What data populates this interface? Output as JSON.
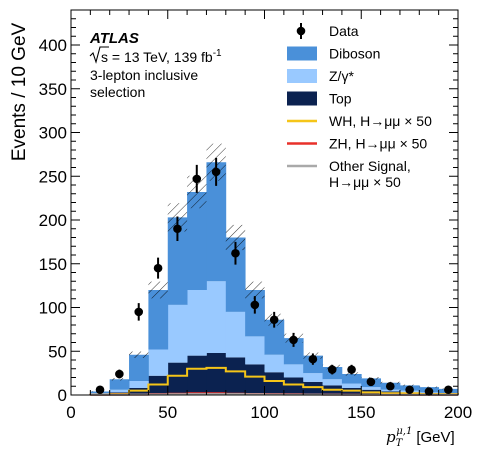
{
  "chart_data": {
    "type": "bar",
    "stacked": true,
    "title": "",
    "experiment": "ATLAS",
    "energy_text": "s = 13 TeV, 139 fb",
    "energy_exp": "-1",
    "selection": [
      "3-lepton inclusive",
      "selection"
    ],
    "xlabel_base": "p",
    "xlabel_sub": "T",
    "xlabel_sup": "μ,1",
    "xlabel_unit": "[GeV]",
    "ylabel": "Events / 10 GeV",
    "xlim": [
      0,
      200
    ],
    "ylim": [
      0,
      440
    ],
    "xticks": [
      0,
      50,
      100,
      150,
      200
    ],
    "yticks": [
      0,
      50,
      100,
      150,
      200,
      250,
      300,
      350,
      400
    ],
    "bin_edges": [
      10,
      20,
      30,
      40,
      50,
      60,
      70,
      80,
      90,
      100,
      110,
      120,
      130,
      140,
      150,
      160,
      170,
      180,
      190,
      200
    ],
    "series": [
      {
        "name": "Top",
        "color": "#0b2250",
        "values": [
          1,
          3,
          8,
          22,
          37,
          45,
          48,
          43,
          35,
          26,
          20,
          15,
          11,
          8,
          6,
          4,
          3,
          2,
          1
        ]
      },
      {
        "name": "Z/γ*",
        "color": "#99c9ff",
        "values": [
          1,
          3,
          8,
          30,
          66,
          75,
          82,
          52,
          32,
          20,
          15,
          10,
          7,
          5,
          3,
          2,
          2,
          1,
          1
        ]
      },
      {
        "name": "Diboson",
        "color": "#4a90d9",
        "values": [
          2,
          12,
          30,
          68,
          100,
          112,
          136,
          85,
          53,
          40,
          30,
          20,
          14,
          11,
          10,
          8,
          6,
          6,
          5
        ]
      }
    ],
    "uncertainty_fraction": 0.08,
    "signal_lines": [
      {
        "name": "WH, H→μμ × 50",
        "color": "#f5c518",
        "values": [
          0.3,
          1,
          5,
          12,
          22,
          30,
          31,
          27,
          21,
          16,
          12,
          9,
          6,
          5,
          3,
          2,
          2,
          1,
          1
        ]
      },
      {
        "name": "ZH, H→μμ × 50",
        "color": "#e8302a",
        "values": [
          0.1,
          0.3,
          0.5,
          1,
          1.5,
          2,
          2,
          1.5,
          1.2,
          1,
          0.8,
          0.6,
          0.4,
          0.3,
          0.2,
          0.2,
          0.1,
          0.1,
          0.1
        ]
      },
      {
        "name": "Other Signal, H→μμ × 50",
        "color": "#a9a9a9",
        "values": [
          0.1,
          0.2,
          0.4,
          0.6,
          0.8,
          1,
          1,
          1,
          0.8,
          0.6,
          0.5,
          0.4,
          0.3,
          0.2,
          0.2,
          0.1,
          0.1,
          0.1,
          0.1
        ]
      }
    ],
    "data_points": {
      "name": "Data",
      "x": [
        15,
        25,
        35,
        45,
        55,
        65,
        75,
        85,
        95,
        105,
        115,
        125,
        135,
        145,
        155,
        165,
        175,
        185,
        195
      ],
      "y": [
        6,
        24,
        95,
        145,
        190,
        247,
        255,
        162,
        103,
        86,
        63,
        41,
        29,
        29,
        15,
        10,
        6,
        4,
        6
      ],
      "err": [
        2.5,
        5,
        10,
        12,
        14,
        16,
        16,
        13,
        10,
        9,
        8,
        6.5,
        5.5,
        5.5,
        4,
        3.2,
        2.5,
        2,
        2.5
      ]
    },
    "legend": {
      "placement": "top-right",
      "entries": [
        {
          "label": "Data",
          "type": "point"
        },
        {
          "label": "Diboson",
          "type": "fill",
          "color": "#4a90d9"
        },
        {
          "label": "Z/γ*",
          "type": "fill",
          "color": "#99c9ff"
        },
        {
          "label": "Top",
          "type": "fill",
          "color": "#0b2250"
        },
        {
          "label": "WH, H→μμ × 50",
          "type": "line",
          "color": "#f5c518"
        },
        {
          "label": "ZH, H→μμ × 50",
          "type": "line",
          "color": "#e8302a"
        },
        {
          "label": [
            "Other Signal,",
            "H→μμ × 50"
          ],
          "type": "line",
          "color": "#a9a9a9"
        }
      ]
    }
  }
}
